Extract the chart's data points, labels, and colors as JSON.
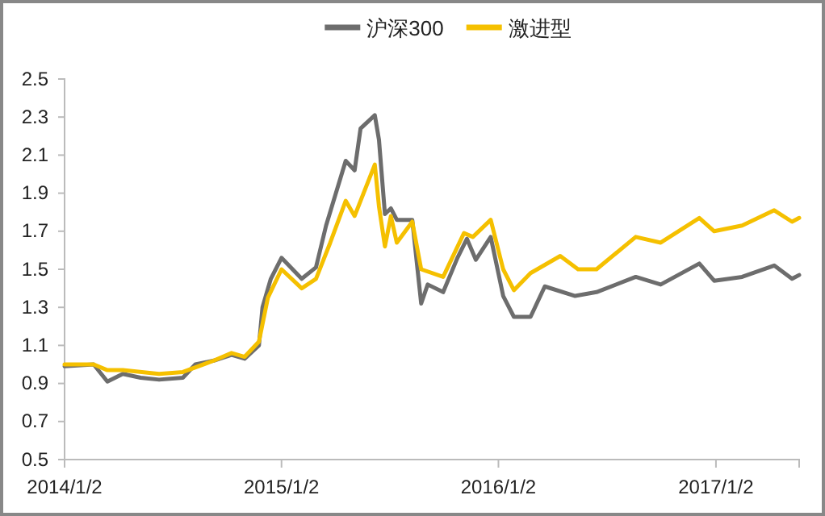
{
  "chart_data": {
    "type": "line",
    "legend": "top",
    "grid": false,
    "marker": "none",
    "line_style": "solid",
    "xlim": [
      "2014-01-02",
      "2017-05-22"
    ],
    "xticks": [
      {
        "value": "2014-01-02",
        "label": "2014/1/2"
      },
      {
        "value": "2015-01-02",
        "label": "2015/1/2"
      },
      {
        "value": "2016-01-02",
        "label": "2016/1/2"
      },
      {
        "value": "2017-01-02",
        "label": "2017/1/2"
      }
    ],
    "ylim": [
      0.5,
      2.5
    ],
    "yticks": [
      0.5,
      0.7,
      0.9,
      1.1,
      1.3,
      1.5,
      1.7,
      1.9,
      2.1,
      2.3,
      2.5
    ],
    "series": [
      {
        "name": "沪深300",
        "color": "#6d6d6d",
        "x": [
          "2014-01-02",
          "2014-02-20",
          "2014-03-15",
          "2014-04-10",
          "2014-05-10",
          "2014-06-10",
          "2014-07-20",
          "2014-08-10",
          "2014-09-10",
          "2014-10-10",
          "2014-11-01",
          "2014-11-25",
          "2014-12-01",
          "2014-12-15",
          "2015-01-02",
          "2015-02-05",
          "2015-03-01",
          "2015-03-18",
          "2015-04-20",
          "2015-05-05",
          "2015-05-15",
          "2015-06-08",
          "2015-06-15",
          "2015-06-25",
          "2015-07-05",
          "2015-07-15",
          "2015-08-10",
          "2015-08-25",
          "2015-09-05",
          "2015-10-01",
          "2015-10-25",
          "2015-11-10",
          "2015-11-25",
          "2015-12-20",
          "2016-01-10",
          "2016-01-28",
          "2016-02-25",
          "2016-03-20",
          "2016-05-10",
          "2016-06-15",
          "2016-08-20",
          "2016-10-01",
          "2016-12-05",
          "2016-12-30",
          "2017-02-15",
          "2017-04-10",
          "2017-05-10",
          "2017-05-22"
        ],
        "values": [
          0.99,
          1.0,
          0.91,
          0.95,
          0.93,
          0.92,
          0.93,
          1.0,
          1.02,
          1.05,
          1.03,
          1.1,
          1.3,
          1.45,
          1.56,
          1.45,
          1.51,
          1.73,
          2.07,
          2.02,
          2.24,
          2.31,
          2.18,
          1.79,
          1.82,
          1.76,
          1.76,
          1.32,
          1.42,
          1.38,
          1.56,
          1.66,
          1.55,
          1.67,
          1.36,
          1.25,
          1.25,
          1.41,
          1.36,
          1.38,
          1.46,
          1.42,
          1.53,
          1.44,
          1.46,
          1.52,
          1.45,
          1.47
        ]
      },
      {
        "name": "激进型",
        "color": "#f5c000",
        "x": [
          "2014-01-02",
          "2014-02-20",
          "2014-03-15",
          "2014-04-10",
          "2014-06-10",
          "2014-07-20",
          "2014-09-10",
          "2014-10-10",
          "2014-11-01",
          "2014-11-25",
          "2014-12-10",
          "2015-01-02",
          "2015-02-05",
          "2015-03-01",
          "2015-03-25",
          "2015-04-20",
          "2015-05-05",
          "2015-06-08",
          "2015-06-15",
          "2015-06-25",
          "2015-07-05",
          "2015-07-15",
          "2015-08-10",
          "2015-08-25",
          "2015-10-01",
          "2015-11-05",
          "2015-11-20",
          "2015-12-20",
          "2016-01-10",
          "2016-01-28",
          "2016-02-25",
          "2016-04-15",
          "2016-05-15",
          "2016-06-15",
          "2016-08-20",
          "2016-10-01",
          "2016-12-05",
          "2016-12-30",
          "2017-02-15",
          "2017-04-10",
          "2017-05-10",
          "2017-05-22"
        ],
        "values": [
          1.0,
          1.0,
          0.97,
          0.97,
          0.95,
          0.96,
          1.02,
          1.06,
          1.04,
          1.12,
          1.35,
          1.5,
          1.4,
          1.45,
          1.64,
          1.86,
          1.78,
          2.05,
          1.83,
          1.62,
          1.78,
          1.64,
          1.75,
          1.5,
          1.46,
          1.69,
          1.67,
          1.76,
          1.5,
          1.39,
          1.48,
          1.57,
          1.5,
          1.5,
          1.67,
          1.64,
          1.77,
          1.7,
          1.73,
          1.81,
          1.75,
          1.77
        ]
      }
    ]
  }
}
